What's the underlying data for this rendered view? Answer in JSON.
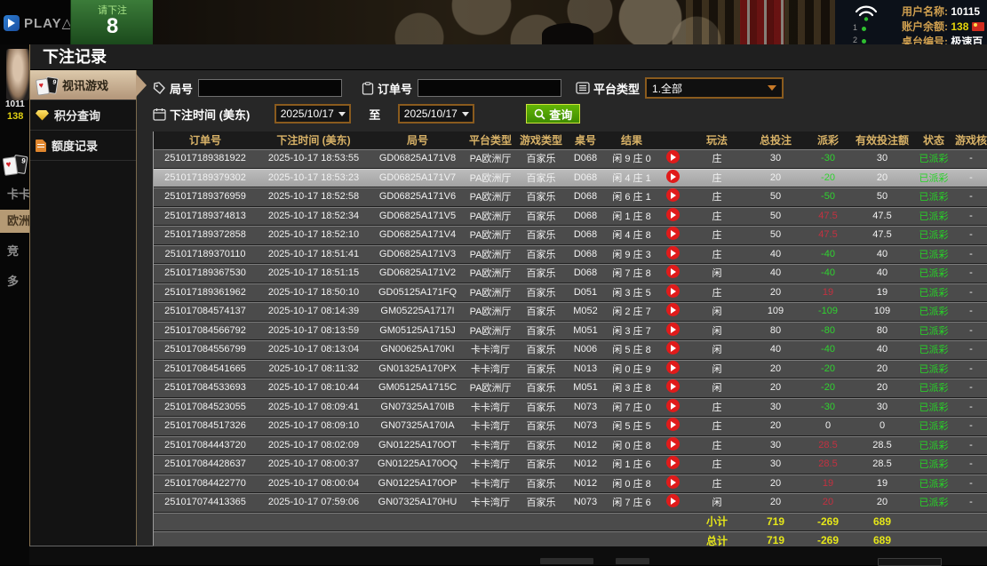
{
  "background": {
    "logo_text": "PLAY△CE",
    "bet_prompt": {
      "label": "请下注",
      "countdown": "8"
    },
    "user_info": {
      "rows": [
        {
          "label": "用户名称:",
          "value": "10115"
        },
        {
          "label": "账户余额:",
          "value": "138"
        },
        {
          "label": "桌台编号:",
          "value": "极速百"
        }
      ],
      "line_numbers": [
        "1",
        "2"
      ]
    },
    "left_nav": {
      "account_id": "1011",
      "balance": "138",
      "items": [
        "卡卡",
        "欧洲",
        "竞",
        "多"
      ]
    }
  },
  "modal": {
    "title": "下注记录",
    "sidebar": [
      {
        "label": "视讯游戏",
        "icon": "cards-icon",
        "active": true
      },
      {
        "label": "积分查询",
        "icon": "diamond-icon",
        "active": false
      },
      {
        "label": "额度记录",
        "icon": "document-icon",
        "active": false
      }
    ],
    "filters": {
      "round_label": "局号",
      "order_label": "订单号",
      "platform_label": "平台类型",
      "platform_value": "1.全部",
      "bet_time_label": "下注时间 (美东)",
      "date_from": "2025/10/17",
      "to_label": "至",
      "date_to": "2025/10/17",
      "query_label": "查询"
    },
    "table": {
      "headers": [
        "订单号",
        "下注时间 (美东)",
        "局号",
        "平台类型",
        "游戏类型",
        "桌号",
        "结果",
        "",
        "玩法",
        "总投注",
        "派彩",
        "有效投注额",
        "状态",
        "游戏核"
      ],
      "rows": [
        {
          "order": "251017189381922",
          "time": "2025-10-17 18:53:55",
          "round": "GD06825A171V8",
          "platform": "PA欧洲厅",
          "game": "百家乐",
          "table_no": "D068",
          "result": "闲 9 庄 0",
          "side": "庄",
          "total": "30",
          "payout": "-30",
          "payout_class": "neg",
          "valid": "30",
          "status": "已派彩",
          "audit": "-",
          "highlight": false
        },
        {
          "order": "251017189379302",
          "time": "2025-10-17 18:53:23",
          "round": "GD06825A171V7",
          "platform": "PA欧洲厅",
          "game": "百家乐",
          "table_no": "D068",
          "result": "闲 4 庄 1",
          "side": "庄",
          "total": "20",
          "payout": "-20",
          "payout_class": "neg",
          "valid": "20",
          "status": "已派彩",
          "audit": "-",
          "highlight": true
        },
        {
          "order": "251017189376959",
          "time": "2025-10-17 18:52:58",
          "round": "GD06825A171V6",
          "platform": "PA欧洲厅",
          "game": "百家乐",
          "table_no": "D068",
          "result": "闲 6 庄 1",
          "side": "庄",
          "total": "50",
          "payout": "-50",
          "payout_class": "neg",
          "valid": "50",
          "status": "已派彩",
          "audit": "-",
          "highlight": false
        },
        {
          "order": "251017189374813",
          "time": "2025-10-17 18:52:34",
          "round": "GD06825A171V5",
          "platform": "PA欧洲厅",
          "game": "百家乐",
          "table_no": "D068",
          "result": "闲 1 庄 8",
          "side": "庄",
          "total": "50",
          "payout": "47.5",
          "payout_class": "pos",
          "valid": "47.5",
          "status": "已派彩",
          "audit": "-",
          "highlight": false
        },
        {
          "order": "251017189372858",
          "time": "2025-10-17 18:52:10",
          "round": "GD06825A171V4",
          "platform": "PA欧洲厅",
          "game": "百家乐",
          "table_no": "D068",
          "result": "闲 4 庄 8",
          "side": "庄",
          "total": "50",
          "payout": "47.5",
          "payout_class": "pos",
          "valid": "47.5",
          "status": "已派彩",
          "audit": "-",
          "highlight": false
        },
        {
          "order": "251017189370110",
          "time": "2025-10-17 18:51:41",
          "round": "GD06825A171V3",
          "platform": "PA欧洲厅",
          "game": "百家乐",
          "table_no": "D068",
          "result": "闲 9 庄 3",
          "side": "庄",
          "total": "40",
          "payout": "-40",
          "payout_class": "neg",
          "valid": "40",
          "status": "已派彩",
          "audit": "-",
          "highlight": false
        },
        {
          "order": "251017189367530",
          "time": "2025-10-17 18:51:15",
          "round": "GD06825A171V2",
          "platform": "PA欧洲厅",
          "game": "百家乐",
          "table_no": "D068",
          "result": "闲 7 庄 8",
          "side": "闲",
          "total": "40",
          "payout": "-40",
          "payout_class": "neg",
          "valid": "40",
          "status": "已派彩",
          "audit": "-",
          "highlight": false
        },
        {
          "order": "251017189361962",
          "time": "2025-10-17 18:50:10",
          "round": "GD05125A171FQ",
          "platform": "PA欧洲厅",
          "game": "百家乐",
          "table_no": "D051",
          "result": "闲 3 庄 5",
          "side": "庄",
          "total": "20",
          "payout": "19",
          "payout_class": "pos",
          "valid": "19",
          "status": "已派彩",
          "audit": "-",
          "highlight": false
        },
        {
          "order": "251017084574137",
          "time": "2025-10-17 08:14:39",
          "round": "GM05225A1717I",
          "platform": "PA欧洲厅",
          "game": "百家乐",
          "table_no": "M052",
          "result": "闲 2 庄 7",
          "side": "闲",
          "total": "109",
          "payout": "-109",
          "payout_class": "neg",
          "valid": "109",
          "status": "已派彩",
          "audit": "-",
          "highlight": false
        },
        {
          "order": "251017084566792",
          "time": "2025-10-17 08:13:59",
          "round": "GM05125A1715J",
          "platform": "PA欧洲厅",
          "game": "百家乐",
          "table_no": "M051",
          "result": "闲 3 庄 7",
          "side": "闲",
          "total": "80",
          "payout": "-80",
          "payout_class": "neg",
          "valid": "80",
          "status": "已派彩",
          "audit": "-",
          "highlight": false
        },
        {
          "order": "251017084556799",
          "time": "2025-10-17 08:13:04",
          "round": "GN00625A170KI",
          "platform": "卡卡湾厅",
          "game": "百家乐",
          "table_no": "N006",
          "result": "闲 5 庄 8",
          "side": "闲",
          "total": "40",
          "payout": "-40",
          "payout_class": "neg",
          "valid": "40",
          "status": "已派彩",
          "audit": "-",
          "highlight": false
        },
        {
          "order": "251017084541665",
          "time": "2025-10-17 08:11:32",
          "round": "GN01325A170PX",
          "platform": "卡卡湾厅",
          "game": "百家乐",
          "table_no": "N013",
          "result": "闲 0 庄 9",
          "side": "闲",
          "total": "20",
          "payout": "-20",
          "payout_class": "neg",
          "valid": "20",
          "status": "已派彩",
          "audit": "-",
          "highlight": false
        },
        {
          "order": "251017084533693",
          "time": "2025-10-17 08:10:44",
          "round": "GM05125A1715C",
          "platform": "PA欧洲厅",
          "game": "百家乐",
          "table_no": "M051",
          "result": "闲 3 庄 8",
          "side": "闲",
          "total": "20",
          "payout": "-20",
          "payout_class": "neg",
          "valid": "20",
          "status": "已派彩",
          "audit": "-",
          "highlight": false
        },
        {
          "order": "251017084523055",
          "time": "2025-10-17 08:09:41",
          "round": "GN07325A170IB",
          "platform": "卡卡湾厅",
          "game": "百家乐",
          "table_no": "N073",
          "result": "闲 7 庄 0",
          "side": "庄",
          "total": "30",
          "payout": "-30",
          "payout_class": "neg",
          "valid": "30",
          "status": "已派彩",
          "audit": "-",
          "highlight": false
        },
        {
          "order": "251017084517326",
          "time": "2025-10-17 08:09:10",
          "round": "GN07325A170IA",
          "platform": "卡卡湾厅",
          "game": "百家乐",
          "table_no": "N073",
          "result": "闲 5 庄 5",
          "side": "庄",
          "total": "20",
          "payout": "0",
          "payout_class": "zero",
          "valid": "0",
          "status": "已派彩",
          "audit": "-",
          "highlight": false
        },
        {
          "order": "251017084443720",
          "time": "2025-10-17 08:02:09",
          "round": "GN01225A170OT",
          "platform": "卡卡湾厅",
          "game": "百家乐",
          "table_no": "N012",
          "result": "闲 0 庄 8",
          "side": "庄",
          "total": "30",
          "payout": "28.5",
          "payout_class": "pos",
          "valid": "28.5",
          "status": "已派彩",
          "audit": "-",
          "highlight": false
        },
        {
          "order": "251017084428637",
          "time": "2025-10-17 08:00:37",
          "round": "GN01225A170OQ",
          "platform": "卡卡湾厅",
          "game": "百家乐",
          "table_no": "N012",
          "result": "闲 1 庄 6",
          "side": "庄",
          "total": "30",
          "payout": "28.5",
          "payout_class": "pos",
          "valid": "28.5",
          "status": "已派彩",
          "audit": "-",
          "highlight": false
        },
        {
          "order": "251017084422770",
          "time": "2025-10-17 08:00:04",
          "round": "GN01225A170OP",
          "platform": "卡卡湾厅",
          "game": "百家乐",
          "table_no": "N012",
          "result": "闲 0 庄 8",
          "side": "庄",
          "total": "20",
          "payout": "19",
          "payout_class": "pos",
          "valid": "19",
          "status": "已派彩",
          "audit": "-",
          "highlight": false
        },
        {
          "order": "251017074413365",
          "time": "2025-10-17 07:59:06",
          "round": "GN07325A170HU",
          "platform": "卡卡湾厅",
          "game": "百家乐",
          "table_no": "N073",
          "result": "闲 7 庄 6",
          "side": "闲",
          "total": "20",
          "payout": "20",
          "payout_class": "pos",
          "valid": "20",
          "status": "已派彩",
          "audit": "-",
          "highlight": false
        }
      ],
      "subtotal": {
        "label": "小计",
        "total_bet": "719",
        "payout": "-269",
        "valid_bet": "689"
      },
      "total": {
        "label": "总计",
        "total_bet": "719",
        "payout": "-269",
        "valid_bet": "689"
      }
    }
  },
  "colors": {
    "loss_green": "#2fd32f",
    "win_red": "#c53040",
    "summary_yellow": "#e5e619",
    "header_gold": "#d8b267",
    "active_tab_tan": "#c9ab87",
    "query_green": "#4f9e03"
  }
}
